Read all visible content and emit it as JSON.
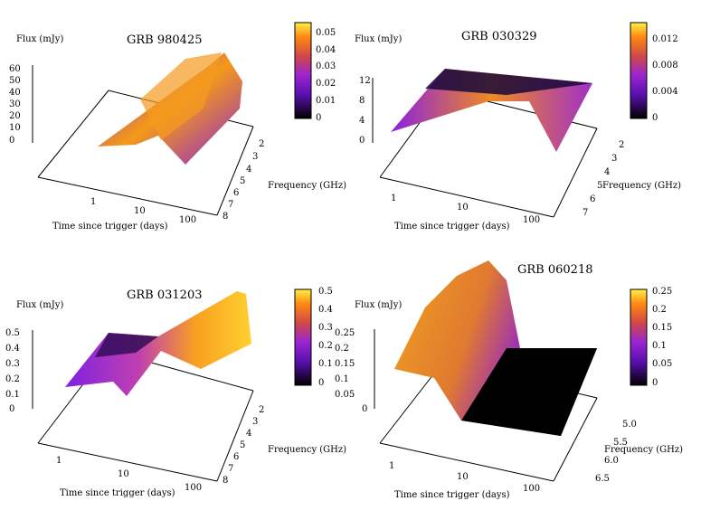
{
  "figure": {
    "panels": [
      {
        "title": "GRB 980425",
        "zlabel": "Flux (mJy)",
        "xlabel": "Time since trigger (days)",
        "ylabel": "Frequency (GHz)",
        "z_ticks": [
          "0",
          "10",
          "20",
          "30",
          "40",
          "50",
          "60"
        ],
        "x_ticks": [
          "1",
          "10",
          "100"
        ],
        "y_ticks": [
          "2",
          "3",
          "4",
          "5",
          "6",
          "7",
          "8"
        ],
        "cb_ticks": [
          "0",
          "0.01",
          "0.02",
          "0.03",
          "0.04",
          "0.05"
        ]
      },
      {
        "title": "GRB 030329",
        "zlabel": "Flux (mJy)",
        "xlabel": "Time since trigger (days)",
        "ylabel": "Frequency (GHz)",
        "z_ticks": [
          "0",
          "4",
          "8",
          "12"
        ],
        "x_ticks": [
          "1",
          "10",
          "100"
        ],
        "y_ticks": [
          "2",
          "3",
          "4",
          "5",
          "6",
          "7"
        ],
        "cb_ticks": [
          "0",
          "0.004",
          "0.008",
          "0.012"
        ]
      },
      {
        "title": "GRB 031203",
        "zlabel": "Flux (mJy)",
        "xlabel": "Time since trigger (days)",
        "ylabel": "Frequency (GHz)",
        "z_ticks": [
          "0",
          "0.1",
          "0.2",
          "0.3",
          "0.4",
          "0.5"
        ],
        "x_ticks": [
          "1",
          "10",
          "100"
        ],
        "y_ticks": [
          "2",
          "3",
          "4",
          "5",
          "6",
          "7",
          "8"
        ],
        "cb_ticks": [
          "0",
          "0.1",
          "0.2",
          "0.3",
          "0.4",
          "0.5"
        ]
      },
      {
        "title": "GRB 060218",
        "zlabel": "Flux (mJy)",
        "xlabel": "Time since trigger (days)",
        "ylabel": "Frequency (GHz)",
        "z_ticks": [
          "0",
          "0.05",
          "0.1",
          "0.15",
          "0.2",
          "0.25"
        ],
        "x_ticks": [
          "1",
          "10",
          "100"
        ],
        "y_ticks": [
          "5.0",
          "5.5",
          "6.0",
          "6.5"
        ],
        "cb_ticks": [
          "0",
          "0.05",
          "0.1",
          "0.15",
          "0.2",
          "0.25"
        ]
      }
    ]
  },
  "chart_data": [
    {
      "type": "surface",
      "title": "GRB 980425",
      "xlabel": "Time since trigger (days)",
      "x_scale": "log",
      "xlim": [
        0.1,
        200
      ],
      "ylabel": "Frequency (GHz)",
      "ylim": [
        2,
        8
      ],
      "zlabel": "Flux (mJy)",
      "zlim": [
        0,
        60
      ],
      "colorbar": {
        "range": [
          0,
          0.05
        ]
      },
      "x": [
        4,
        6,
        10,
        16,
        25,
        40,
        63,
        100
      ],
      "z_profile": [
        2,
        28,
        45,
        8,
        48,
        55,
        40,
        2
      ]
    },
    {
      "type": "surface",
      "title": "GRB 030329",
      "xlabel": "Time since trigger (days)",
      "x_scale": "log",
      "xlim": [
        0.3,
        200
      ],
      "ylabel": "Frequency (GHz)",
      "ylim": [
        2,
        7
      ],
      "zlabel": "Flux (mJy)",
      "zlim": [
        0,
        12
      ],
      "colorbar": {
        "range": [
          0,
          0.012
        ]
      },
      "x": [
        0.5,
        1,
        3,
        10,
        30,
        100
      ],
      "z_profile": [
        6,
        10,
        12,
        11,
        8,
        6
      ]
    },
    {
      "type": "surface",
      "title": "GRB 031203",
      "xlabel": "Time since trigger (days)",
      "x_scale": "log",
      "xlim": [
        0.3,
        200
      ],
      "ylabel": "Frequency (GHz)",
      "ylim": [
        2,
        8
      ],
      "zlabel": "Flux (mJy)",
      "zlim": [
        0,
        0.5
      ],
      "colorbar": {
        "range": [
          0,
          0.5
        ]
      },
      "x": [
        0.5,
        1,
        3,
        10,
        30,
        100
      ],
      "z_profile": [
        0.15,
        0.25,
        0.35,
        0.3,
        0.42,
        0.5
      ]
    },
    {
      "type": "surface",
      "title": "GRB 060218",
      "xlabel": "Time since trigger (days)",
      "x_scale": "log",
      "xlim": [
        0.3,
        200
      ],
      "ylabel": "Frequency (GHz)",
      "ylim": [
        5.0,
        6.5
      ],
      "zlabel": "Flux (mJy)",
      "zlim": [
        0,
        0.25
      ],
      "colorbar": {
        "range": [
          0,
          0.25
        ]
      },
      "x": [
        0.5,
        1,
        2,
        3,
        5,
        10,
        30,
        100
      ],
      "z_profile": [
        0.12,
        0.2,
        0.28,
        0.22,
        0.05,
        0.0,
        0.0,
        0.0
      ]
    }
  ]
}
